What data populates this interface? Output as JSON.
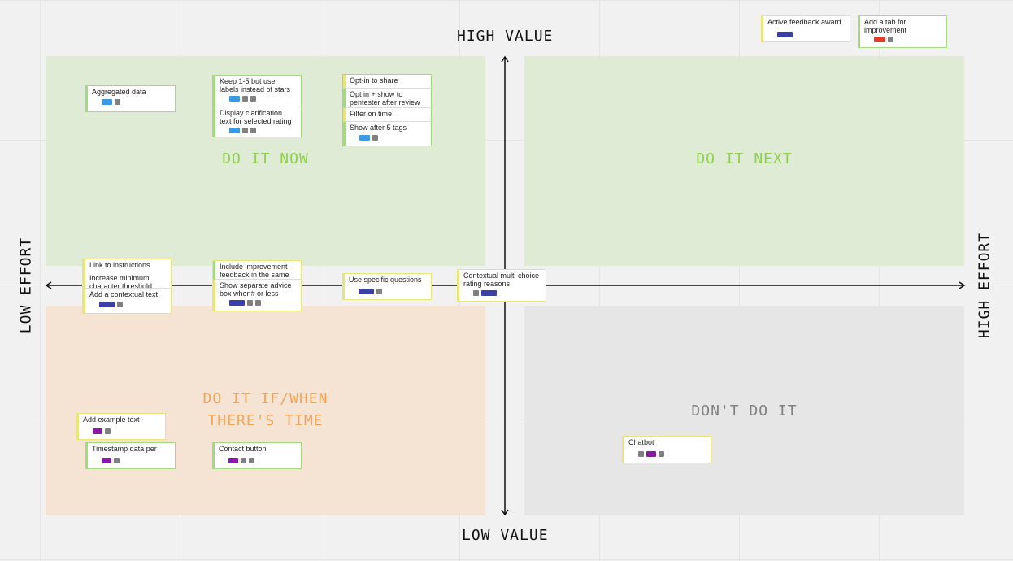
{
  "axes": {
    "top": "HIGH VALUE",
    "bottom": "LOW VALUE",
    "left": "LOW EFFORT",
    "right": "HIGH EFFORT"
  },
  "quadrants": {
    "do_it_now": "DO IT NOW",
    "do_it_next": "DO IT NEXT",
    "do_it_when": "DO IT IF/WHEN\nTHERE'S TIME",
    "dont_do_it": "DON'T DO IT"
  },
  "colors": {
    "green_quadrant": "#dfebd4",
    "orange_quadrant": "#f5e4d4",
    "grey_quadrant": "#e6e6e6",
    "tag_blue": "#3a9ae6",
    "tag_navy": "#3b3fa8",
    "tag_purple": "#8c17a8",
    "tag_red": "#e63b26",
    "tag_grey": "#808080"
  },
  "notes": {
    "aggregated_data": "Aggregated data",
    "keep_1_5": "Keep 1-5 but use labels instead of stars",
    "display_clarification": "Display clarification text for selected rating",
    "opt_in_share": "Opt-in to share",
    "opt_in_show": "Opt in + show to pentester after review",
    "filter_on_time": "Filter on time",
    "show_after_5_tags": "Show after 5 tags",
    "active_feedback_award": "Active feedback award",
    "add_tab_improvement": "Add a tab for improvement",
    "link_to_instructions": "Link to instructions",
    "increase_min_char": "Increase minimum character threshold",
    "add_contextual_text": "Add a contextual text",
    "include_improvement": "Include improvement feedback in the same",
    "show_separate_advice": "Show separate advice box when# or less",
    "use_specific_questions": "Use specific questions",
    "contextual_multi_choice": "Contextual multi choice rating reasons",
    "add_example_text": "Add example text",
    "timestamp_data": "Timestamp data per",
    "contact_button": "Contact button",
    "chatbot": "Chatbot"
  }
}
